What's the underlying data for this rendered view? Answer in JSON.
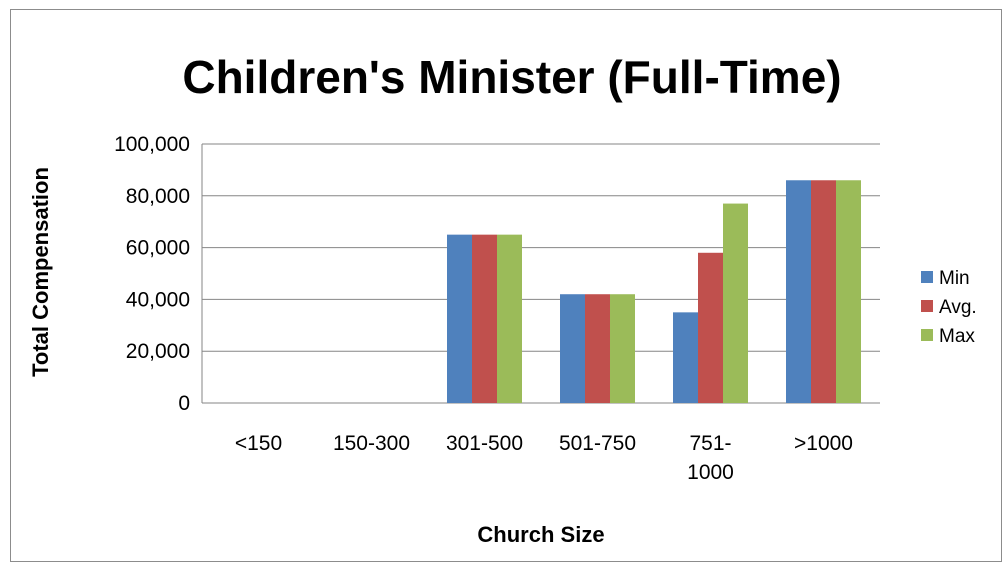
{
  "chart_data": {
    "type": "bar",
    "title": "Children's Minister (Full-Time)",
    "xlabel": "Church Size",
    "ylabel": "Total Compensation",
    "categories": [
      "<150",
      "150-300",
      "301-500",
      "501-750",
      "751-\n1000",
      ">1000"
    ],
    "series": [
      {
        "name": "Min",
        "color": "#4f81bd",
        "values": [
          0,
          0,
          65000,
          42000,
          35000,
          86000
        ]
      },
      {
        "name": "Avg.",
        "color": "#c0504d",
        "values": [
          0,
          0,
          65000,
          42000,
          58000,
          86000
        ]
      },
      {
        "name": "Max",
        "color": "#9bbb59",
        "values": [
          0,
          0,
          65000,
          42000,
          77000,
          86000
        ]
      }
    ],
    "ylim": [
      0,
      100000
    ],
    "yticks": [
      0,
      20000,
      40000,
      60000,
      80000,
      100000
    ],
    "ytick_labels": [
      "0",
      "20,000",
      "40,000",
      "60,000",
      "80,000",
      "100,000"
    ],
    "grid": true,
    "legend_position": "right"
  }
}
